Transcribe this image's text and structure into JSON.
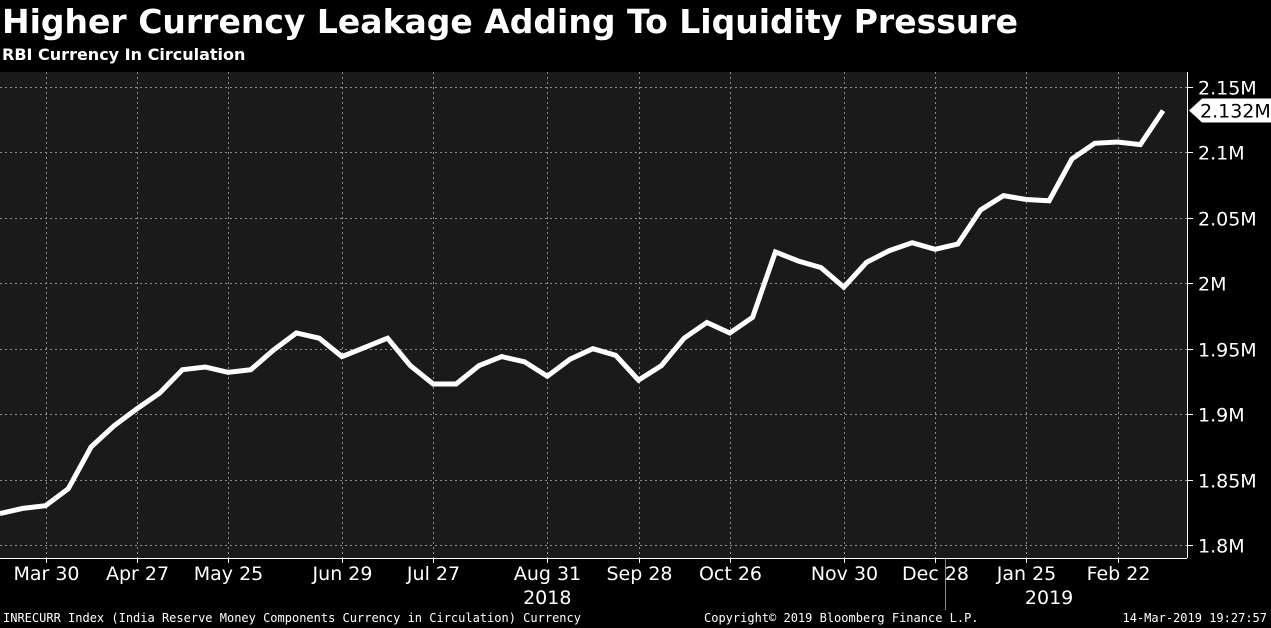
{
  "header": {
    "title": "Higher Currency Leakage Adding To Liquidity Pressure",
    "subtitle": "RBI Currency In Circulation"
  },
  "footer": {
    "source": "INRECURR Index (India Reserve Money Components Currency in Circulation) Currency",
    "copyright": "Copyright© 2019 Bloomberg Finance L.P.",
    "timestamp": "14-Mar-2019 19:27:57"
  },
  "colors": {
    "background": "#000000",
    "plot_background": "#1a1a1a",
    "grid": "#8c8c8c",
    "line": "#ffffff",
    "text": "#ffffff"
  },
  "chart_data": {
    "type": "line",
    "title": "Higher Currency Leakage Adding To Liquidity Pressure",
    "subtitle": "RBI Currency In Circulation",
    "xlabel": "",
    "ylabel": "",
    "grid": true,
    "y_axis_side": "right",
    "ylim": [
      1.79,
      2.16
    ],
    "ytick_values": [
      1.8,
      1.85,
      1.9,
      1.95,
      2.0,
      2.05,
      2.1,
      2.15
    ],
    "ytick_labels": [
      "1.8M",
      "1.85M",
      "1.9M",
      "1.95M",
      "2M",
      "2.05M",
      "2.1M",
      "2.15M"
    ],
    "last_value_label": "2.132M",
    "x_ticks": [
      {
        "label": "Mar 30",
        "date": "2018-03-30"
      },
      {
        "label": "Apr 27",
        "date": "2018-04-27"
      },
      {
        "label": "May 25",
        "date": "2018-05-25"
      },
      {
        "label": "Jun 29",
        "date": "2018-06-29"
      },
      {
        "label": "Jul 27",
        "date": "2018-07-27"
      },
      {
        "label": "Aug 31",
        "date": "2018-08-31"
      },
      {
        "label": "Sep 28",
        "date": "2018-09-28"
      },
      {
        "label": "Oct 26",
        "date": "2018-10-26"
      },
      {
        "label": "Nov 30",
        "date": "2018-11-30"
      },
      {
        "label": "Dec 28",
        "date": "2018-12-28"
      },
      {
        "label": "Jan 25",
        "date": "2019-01-25"
      },
      {
        "label": "Feb 22",
        "date": "2019-02-22"
      }
    ],
    "year_labels": [
      {
        "label": "2018",
        "date": "2018-08-31"
      },
      {
        "label": "2019",
        "date": "2019-02-01"
      }
    ],
    "year_divider_date": "2018-12-31",
    "series": [
      {
        "values": [
          {
            "x": "2018-03-16",
            "y": 1.824
          },
          {
            "x": "2018-03-23",
            "y": 1.828
          },
          {
            "x": "2018-03-30",
            "y": 1.83
          },
          {
            "x": "2018-04-06",
            "y": 1.843
          },
          {
            "x": "2018-04-13",
            "y": 1.875
          },
          {
            "x": "2018-04-20",
            "y": 1.891
          },
          {
            "x": "2018-04-27",
            "y": 1.904
          },
          {
            "x": "2018-05-04",
            "y": 1.916
          },
          {
            "x": "2018-05-11",
            "y": 1.934
          },
          {
            "x": "2018-05-18",
            "y": 1.936
          },
          {
            "x": "2018-05-25",
            "y": 1.932
          },
          {
            "x": "2018-06-01",
            "y": 1.934
          },
          {
            "x": "2018-06-08",
            "y": 1.949
          },
          {
            "x": "2018-06-15",
            "y": 1.962
          },
          {
            "x": "2018-06-22",
            "y": 1.958
          },
          {
            "x": "2018-06-29",
            "y": 1.944
          },
          {
            "x": "2018-07-06",
            "y": 1.951
          },
          {
            "x": "2018-07-13",
            "y": 1.958
          },
          {
            "x": "2018-07-20",
            "y": 1.937
          },
          {
            "x": "2018-07-27",
            "y": 1.923
          },
          {
            "x": "2018-08-03",
            "y": 1.923
          },
          {
            "x": "2018-08-10",
            "y": 1.937
          },
          {
            "x": "2018-08-17",
            "y": 1.944
          },
          {
            "x": "2018-08-24",
            "y": 1.94
          },
          {
            "x": "2018-08-31",
            "y": 1.929
          },
          {
            "x": "2018-09-07",
            "y": 1.942
          },
          {
            "x": "2018-09-14",
            "y": 1.95
          },
          {
            "x": "2018-09-21",
            "y": 1.945
          },
          {
            "x": "2018-09-28",
            "y": 1.926
          },
          {
            "x": "2018-10-05",
            "y": 1.937
          },
          {
            "x": "2018-10-12",
            "y": 1.958
          },
          {
            "x": "2018-10-19",
            "y": 1.97
          },
          {
            "x": "2018-10-26",
            "y": 1.962
          },
          {
            "x": "2018-11-02",
            "y": 1.974
          },
          {
            "x": "2018-11-09",
            "y": 2.024
          },
          {
            "x": "2018-11-16",
            "y": 2.017
          },
          {
            "x": "2018-11-23",
            "y": 2.012
          },
          {
            "x": "2018-11-30",
            "y": 1.997
          },
          {
            "x": "2018-12-07",
            "y": 2.016
          },
          {
            "x": "2018-12-14",
            "y": 2.025
          },
          {
            "x": "2018-12-21",
            "y": 2.031
          },
          {
            "x": "2018-12-28",
            "y": 2.026
          },
          {
            "x": "2019-01-04",
            "y": 2.03
          },
          {
            "x": "2019-01-11",
            "y": 2.056
          },
          {
            "x": "2019-01-18",
            "y": 2.067
          },
          {
            "x": "2019-01-25",
            "y": 2.064
          },
          {
            "x": "2019-02-01",
            "y": 2.063
          },
          {
            "x": "2019-02-08",
            "y": 2.095
          },
          {
            "x": "2019-02-15",
            "y": 2.107
          },
          {
            "x": "2019-02-22",
            "y": 2.108
          },
          {
            "x": "2019-03-01",
            "y": 2.106
          },
          {
            "x": "2019-03-08",
            "y": 2.132
          }
        ]
      }
    ]
  }
}
